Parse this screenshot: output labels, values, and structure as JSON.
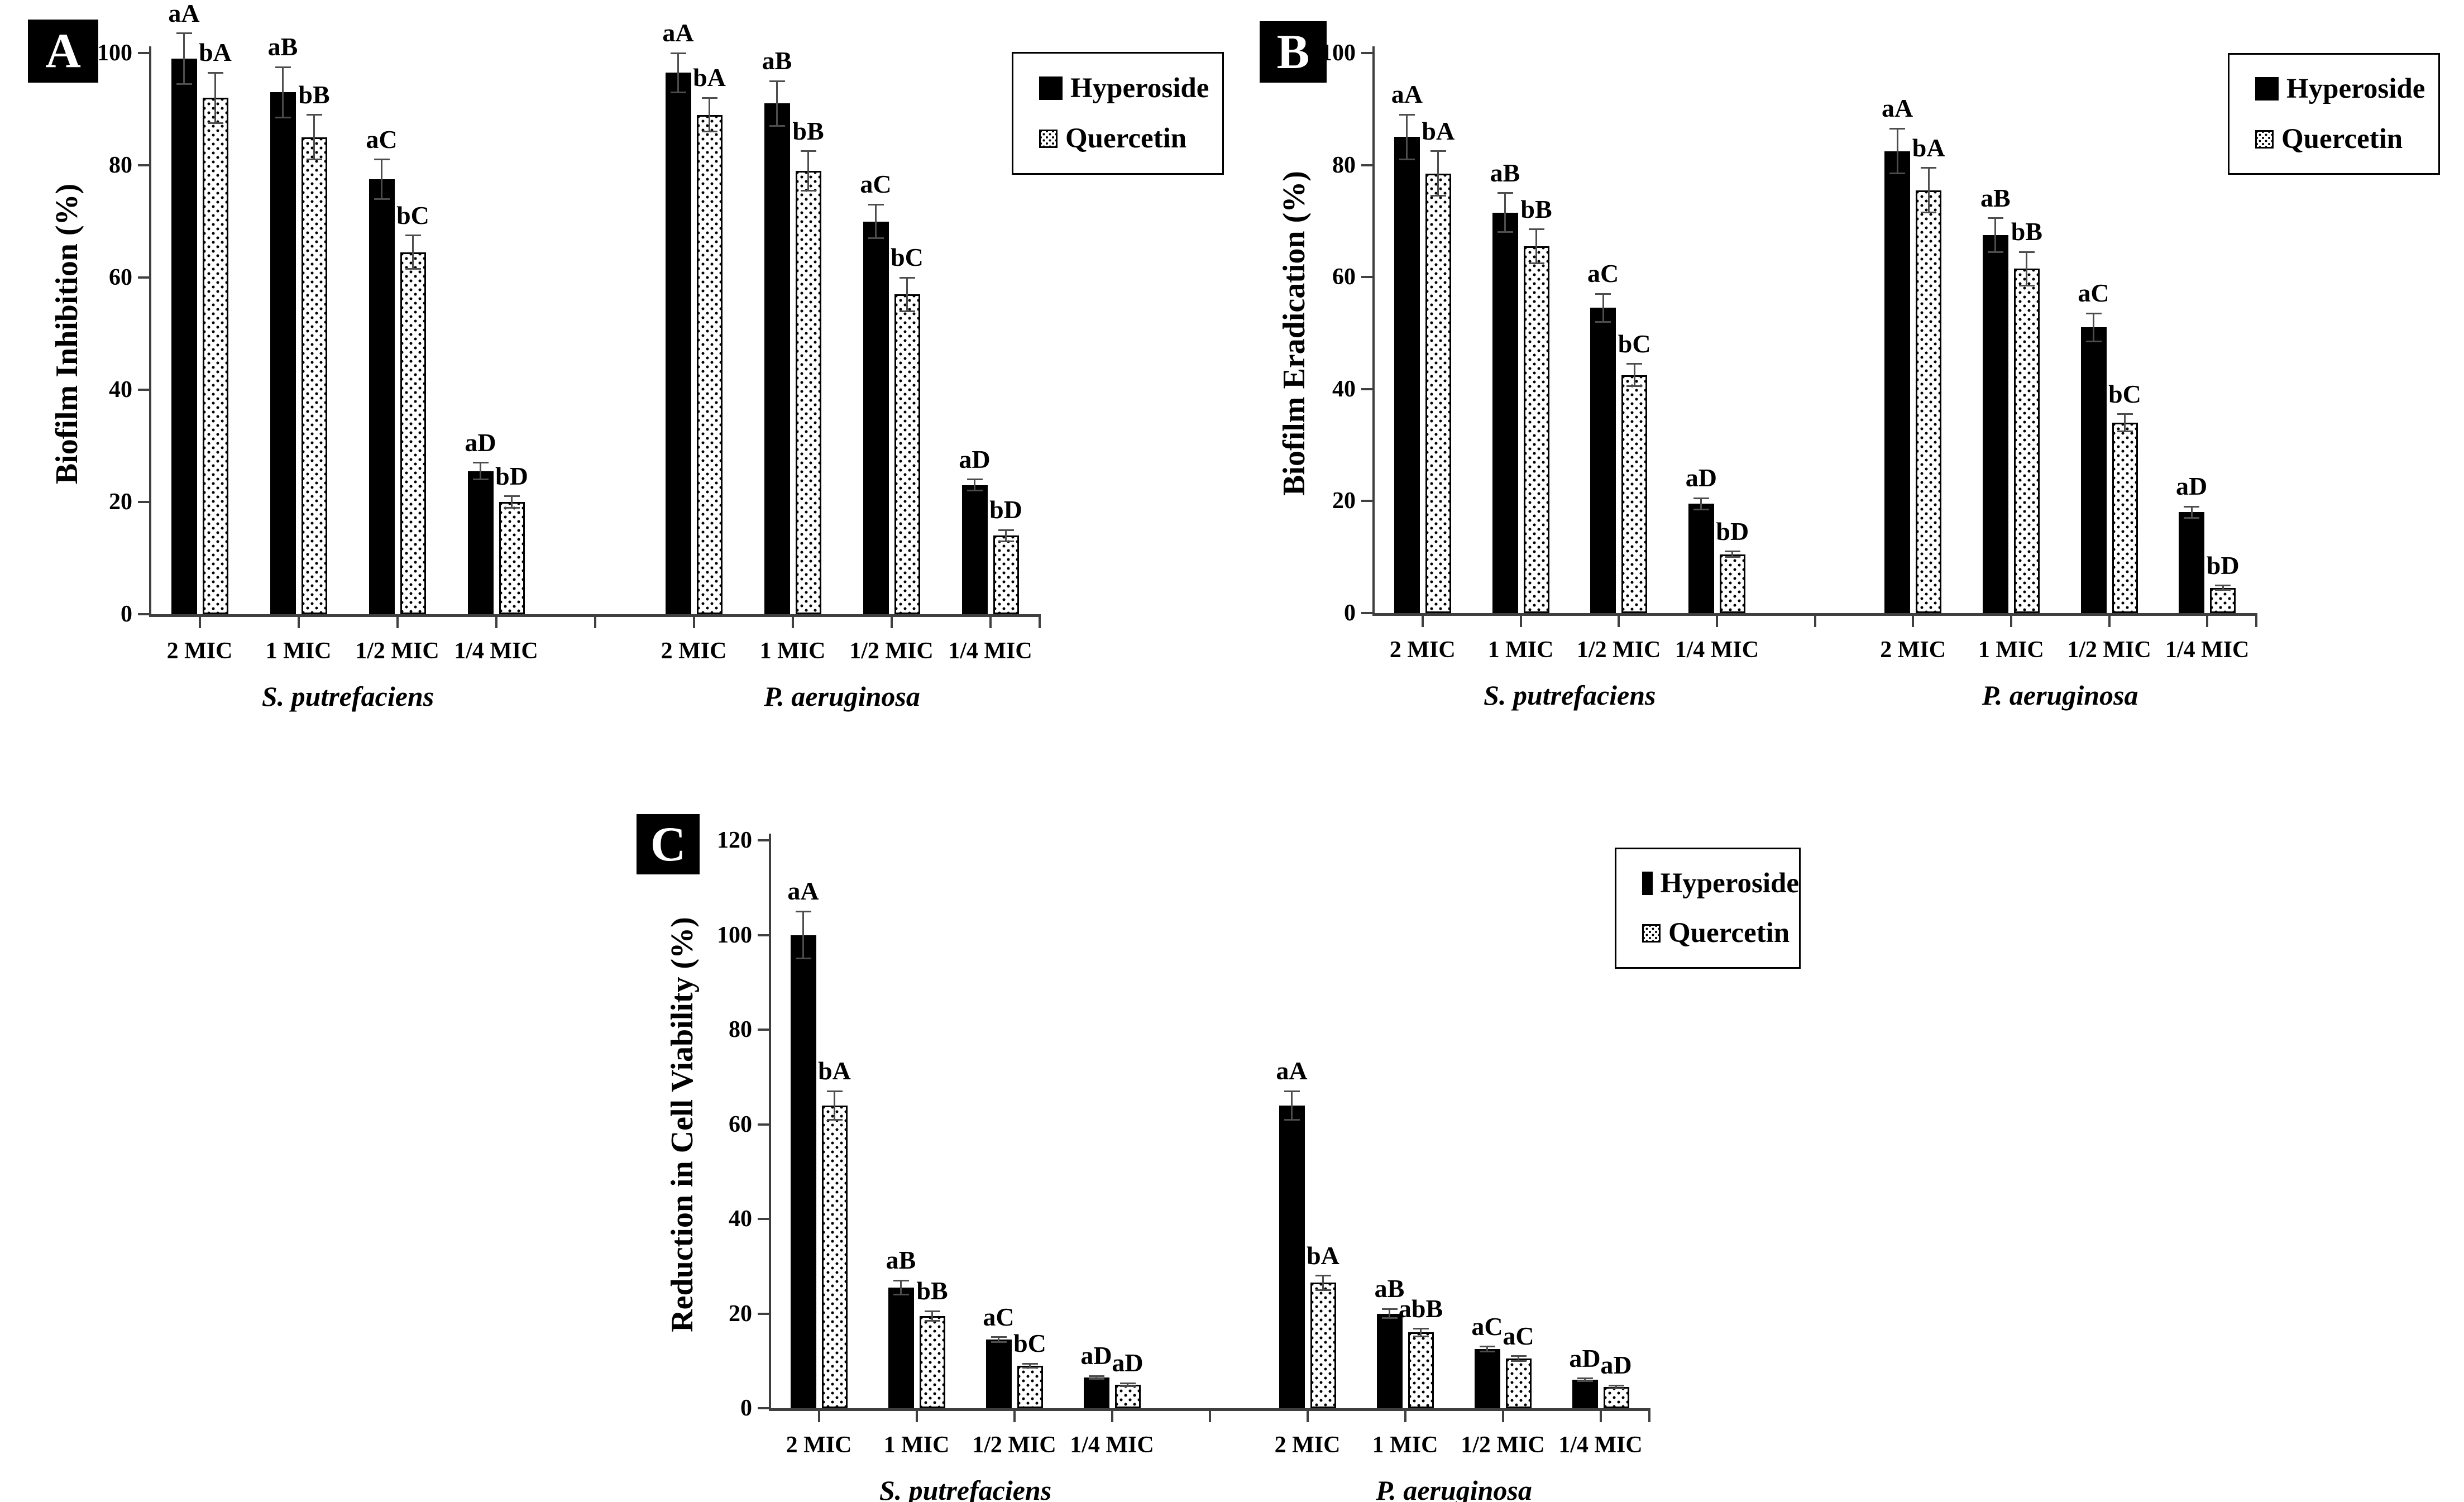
{
  "figure": {
    "background": "#ffffff",
    "colors": {
      "hyperoside_fill": "#000000",
      "quercetin_fill": "#ffffff",
      "quercetin_dots": "#000000",
      "error_bar": "#4d4d4d",
      "axis": "#3f3f3f",
      "text": "#000000",
      "panel_label_bg": "#000000",
      "panel_label_text": "#ffffff"
    }
  },
  "legend": {
    "items": [
      {
        "label": "Hyperoside",
        "swatch": "solid-black-square"
      },
      {
        "label": "Quercetin",
        "swatch": "dotted-white-square"
      }
    ]
  },
  "chart_data": [
    {
      "panel": "A",
      "type": "bar",
      "title": "",
      "xlabel": "",
      "ylabel": "Biofilm Inhibition (%)",
      "ylim": [
        0,
        100
      ],
      "yticks": [
        0,
        20,
        40,
        60,
        80,
        100
      ],
      "grid": "off",
      "legend_position": "top-right",
      "legend_entries": [
        "Hyperoside",
        "Quercetin"
      ],
      "groups": [
        {
          "species": "S. putrefaciens",
          "categories": [
            "2 MIC",
            "1 MIC",
            "1/2 MIC",
            "1/4 MIC"
          ],
          "series": [
            {
              "name": "Hyperoside",
              "values": [
                99,
                93,
                77.5,
                25.5
              ],
              "errors": [
                4.5,
                4.5,
                3.5,
                1.5
              ],
              "sig_labels": [
                "aA",
                "aB",
                "aC",
                "aD"
              ]
            },
            {
              "name": "Quercetin",
              "values": [
                92,
                85,
                64.5,
                20
              ],
              "errors": [
                4.5,
                4,
                3,
                1
              ],
              "sig_labels": [
                "bA",
                "bB",
                "bC",
                "bD"
              ]
            }
          ]
        },
        {
          "species": "P. aeruginosa",
          "categories": [
            "2 MIC",
            "1 MIC",
            "1/2 MIC",
            "1/4 MIC"
          ],
          "series": [
            {
              "name": "Hyperoside",
              "values": [
                96.5,
                91,
                70,
                23
              ],
              "errors": [
                3.5,
                4,
                3,
                1
              ],
              "sig_labels": [
                "aA",
                "aB",
                "aC",
                "aD"
              ]
            },
            {
              "name": "Quercetin",
              "values": [
                89,
                79,
                57,
                14
              ],
              "errors": [
                3,
                3.5,
                3,
                1
              ],
              "sig_labels": [
                "bA",
                "bB",
                "bC",
                "bD"
              ]
            }
          ]
        }
      ]
    },
    {
      "panel": "B",
      "type": "bar",
      "title": "",
      "xlabel": "",
      "ylabel": "Biofilm Eradication (%)",
      "ylim": [
        0,
        100
      ],
      "yticks": [
        0,
        20,
        40,
        60,
        80,
        100
      ],
      "grid": "off",
      "legend_position": "top-right",
      "legend_entries": [
        "Hyperoside",
        "Quercetin"
      ],
      "groups": [
        {
          "species": "S. putrefaciens",
          "categories": [
            "2 MIC",
            "1 MIC",
            "1/2 MIC",
            "1/4 MIC"
          ],
          "series": [
            {
              "name": "Hyperoside",
              "values": [
                85,
                71.5,
                54.5,
                19.5
              ],
              "errors": [
                4,
                3.5,
                2.5,
                1
              ],
              "sig_labels": [
                "aA",
                "aB",
                "aC",
                "aD"
              ]
            },
            {
              "name": "Quercetin",
              "values": [
                78.5,
                65.5,
                42.5,
                10.5
              ],
              "errors": [
                4,
                3,
                2,
                0.5
              ],
              "sig_labels": [
                "bA",
                "bB",
                "bC",
                "bD"
              ]
            }
          ]
        },
        {
          "species": "P. aeruginosa",
          "categories": [
            "2 MIC",
            "1 MIC",
            "1/2 MIC",
            "1/4 MIC"
          ],
          "series": [
            {
              "name": "Hyperoside",
              "values": [
                82.5,
                67.5,
                51,
                18
              ],
              "errors": [
                4,
                3,
                2.5,
                1
              ],
              "sig_labels": [
                "aA",
                "aB",
                "aC",
                "aD"
              ]
            },
            {
              "name": "Quercetin",
              "values": [
                75.5,
                61.5,
                34,
                4.5
              ],
              "errors": [
                4,
                3,
                1.5,
                0.4
              ],
              "sig_labels": [
                "bA",
                "bB",
                "bC",
                "bD"
              ]
            }
          ]
        }
      ]
    },
    {
      "panel": "C",
      "type": "bar",
      "title": "",
      "xlabel": "",
      "ylabel": "Reduction in Cell Viability (%)",
      "ylim": [
        0,
        120
      ],
      "yticks": [
        0,
        20,
        40,
        60,
        80,
        100,
        120
      ],
      "grid": "off",
      "legend_position": "top-right",
      "legend_entries": [
        "Hyperoside",
        "Quercetin"
      ],
      "groups": [
        {
          "species": "S. putrefaciens",
          "categories": [
            "2 MIC",
            "1 MIC",
            "1/2 MIC",
            "1/4 MIC"
          ],
          "series": [
            {
              "name": "Hyperoside",
              "values": [
                100,
                25.5,
                14.5,
                6.5
              ],
              "errors": [
                5,
                1.5,
                0.5,
                0.3
              ],
              "sig_labels": [
                "aA",
                "aB",
                "aC",
                "aD"
              ]
            },
            {
              "name": "Quercetin",
              "values": [
                64,
                19.5,
                9,
                5
              ],
              "errors": [
                3,
                1,
                0.4,
                0.3
              ],
              "sig_labels": [
                "bA",
                "bB",
                "bC",
                "aD"
              ]
            }
          ]
        },
        {
          "species": "P. aeruginosa",
          "categories": [
            "2 MIC",
            "1 MIC",
            "1/2 MIC",
            "1/4 MIC"
          ],
          "series": [
            {
              "name": "Hyperoside",
              "values": [
                64,
                20,
                12.5,
                6
              ],
              "errors": [
                3,
                1,
                0.5,
                0.3
              ],
              "sig_labels": [
                "aA",
                "aB",
                "aC",
                "aD"
              ]
            },
            {
              "name": "Quercetin",
              "values": [
                26.5,
                16,
                10.5,
                4.5
              ],
              "errors": [
                1.5,
                0.8,
                0.5,
                0.3
              ],
              "sig_labels": [
                "bA",
                "abB",
                "aC",
                "aD"
              ]
            }
          ]
        }
      ]
    }
  ]
}
